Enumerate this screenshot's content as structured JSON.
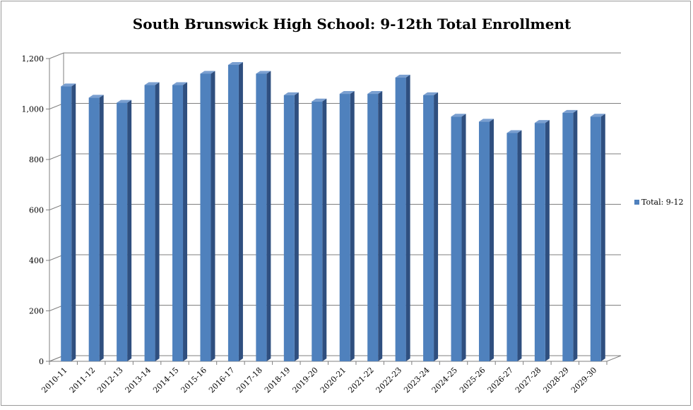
{
  "chart_data": {
    "type": "bar",
    "title": "South Brunswick High School: 9-12th Total Enrollment",
    "categories": [
      "2010-11",
      "2011-12",
      "2012-13",
      "2013-14",
      "2014-15",
      "2015-16",
      "2016-17",
      "2017-18",
      "2018-19",
      "2019-20",
      "2020-21",
      "2021-22",
      "2022-23",
      "2023-24",
      "2024-25",
      "2025-26",
      "2026-27",
      "2027-28",
      "2028-29",
      "2029-30"
    ],
    "series": [
      {
        "name": "Total: 9-12",
        "values": [
          1090,
          1045,
          1025,
          1095,
          1095,
          1140,
          1175,
          1140,
          1055,
          1030,
          1060,
          1060,
          1125,
          1055,
          970,
          950,
          905,
          945,
          985,
          970
        ]
      }
    ],
    "ylim": [
      0,
      1200
    ],
    "yticks": [
      0,
      200,
      400,
      600,
      800,
      1000,
      1200
    ],
    "ytick_labels": [
      "0",
      "200",
      "400",
      "600",
      "800",
      "1,000",
      "1,200"
    ],
    "grid": true,
    "legend_position": "right",
    "colors": {
      "bar_front": "#4f81bd",
      "bar_side": "#2f4f7f",
      "bar_top": "#7a9fd0",
      "grid": "#7f7f7f"
    }
  }
}
